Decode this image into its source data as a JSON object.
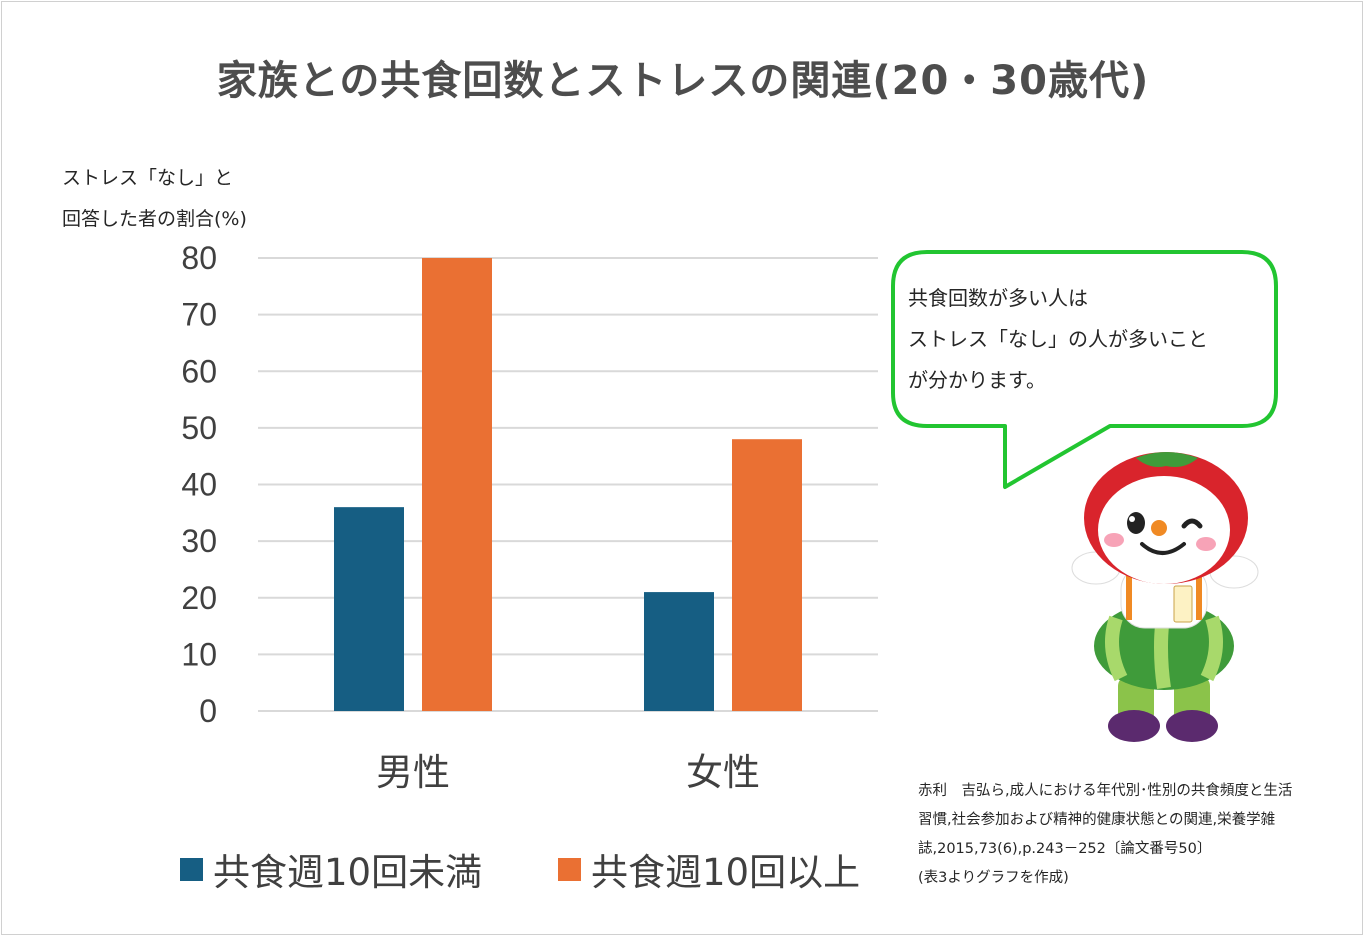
{
  "title": "家族との共食回数とストレスの関連(20・30歳代)",
  "ylabel": "ストレス「なし」と\n回答した者の割合(%)",
  "bubble_text": "共食回数が多い人は\nストレス「なし」の人が多いこと\nが分かります。",
  "source_text": "赤利　吉弘ら,成人における年代別･性別の共食頻度と生活\n習慣,社会参加および精神的健康状態との関連,栄養学雑\n誌,2015,73(6),p.243－252〔論文番号50〕\n(表3よりグラフを作成)",
  "colors": {
    "series1": "#165e83",
    "series2": "#ea7033",
    "grid": "#d9d9d9",
    "bubble_border": "#22c531"
  },
  "mascot_icon": "tomato-mascot-icon",
  "chart_data": {
    "type": "bar",
    "categories": [
      "男性",
      "女性"
    ],
    "series": [
      {
        "name": "共食週10回未満",
        "values": [
          36,
          21
        ]
      },
      {
        "name": "共食週10回以上",
        "values": [
          80,
          48
        ]
      }
    ],
    "yticks": [
      "0",
      "10",
      "20",
      "30",
      "40",
      "50",
      "60",
      "70",
      "80"
    ],
    "ylim": [
      0,
      80
    ],
    "ylabel": "ストレス「なし」と\n回答した者の割合(%)",
    "grid": true,
    "legend": "bottom"
  }
}
